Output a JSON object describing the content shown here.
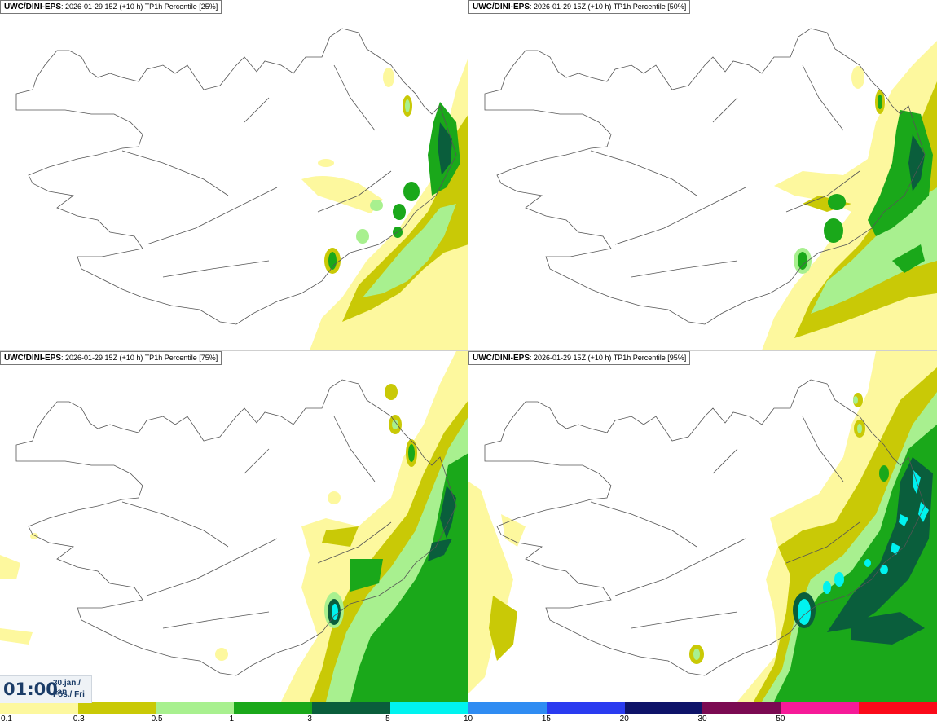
{
  "panels": [
    {
      "source": "UWC/DINI-EPS",
      "run": "2026-01-29 15Z (+10 h)",
      "title": "TP1h Percentile [25%]"
    },
    {
      "source": "UWC/DINI-EPS",
      "run": "2026-01-29 15Z (+10 h)",
      "title": "TP1h Percentile [50%]"
    },
    {
      "source": "UWC/DINI-EPS",
      "run": "2026-01-29 15Z (+10 h)",
      "title": "TP1h Percentile [75%]"
    },
    {
      "source": "UWC/DINI-EPS",
      "run": "2026-01-29 15Z (+10 h)",
      "title": "TP1h Percentile [95%]"
    }
  ],
  "time": {
    "clock": "01:00",
    "date": "30.jan./ Jan",
    "day": "Fös./ Fri"
  },
  "legend": {
    "colors": [
      "#fdf89e",
      "#c9c906",
      "#a8f08f",
      "#1aa81a",
      "#0a5e3c",
      "#00f3ef",
      "#2f8cf2",
      "#2a3bf0",
      "#0e1369",
      "#7b0a52",
      "#f61a98",
      "#fb0a1a"
    ],
    "labels": [
      "0.1",
      "0.3",
      "0.5",
      "1",
      "3",
      "5",
      "10",
      "15",
      "20",
      "30",
      "50"
    ]
  }
}
